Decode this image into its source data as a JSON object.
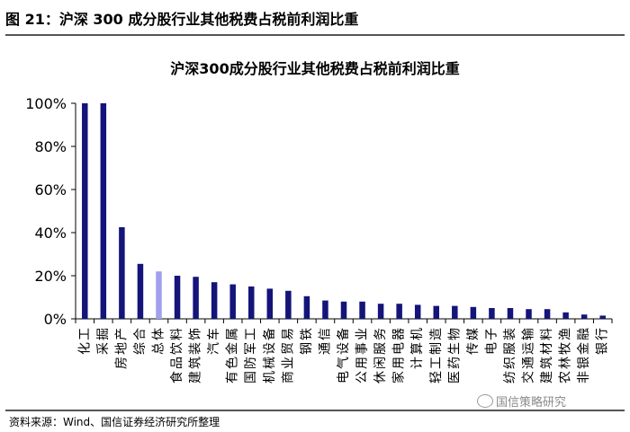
{
  "header": {
    "title": "图 21：沪深 300 成分股行业其他税费占税前利润比重"
  },
  "chart_data": {
    "type": "bar",
    "title": "沪深300成分股行业其他税费占税前利润比重",
    "xlabel": "",
    "ylabel": "",
    "ylim": [
      0,
      100
    ],
    "yticks": [
      "0%",
      "20%",
      "40%",
      "60%",
      "80%",
      "100%"
    ],
    "categories": [
      "化工",
      "采掘",
      "房地产",
      "综合",
      "总体",
      "食品饮料",
      "建筑装饰",
      "汽车",
      "有色金属",
      "国防军工",
      "机械设备",
      "商业贸易",
      "钢铁",
      "通信",
      "电气设备",
      "公用事业",
      "休闲服务",
      "家用电器",
      "计算机",
      "轻工制造",
      "医药生物",
      "传媒",
      "电子",
      "纺织服装",
      "交通运输",
      "建筑材料",
      "农林牧渔",
      "非银金融",
      "银行"
    ],
    "values": [
      100,
      100,
      42.5,
      25.5,
      22,
      20,
      19.5,
      17,
      16,
      15,
      14,
      13,
      10.5,
      8.5,
      8,
      8,
      7,
      7,
      6.5,
      6,
      6,
      5.5,
      5,
      5,
      4.5,
      4.5,
      3,
      2,
      1.5
    ],
    "highlight_category": "总体",
    "colors": {
      "bar": "#14147a",
      "highlight": "#a0a0ee"
    },
    "grid": false
  },
  "footer": {
    "source": "资料来源：Wind、国信证券经济研究所整理",
    "watermark": "国信策略研究",
    "watermark_icon": "wechat-icon"
  }
}
